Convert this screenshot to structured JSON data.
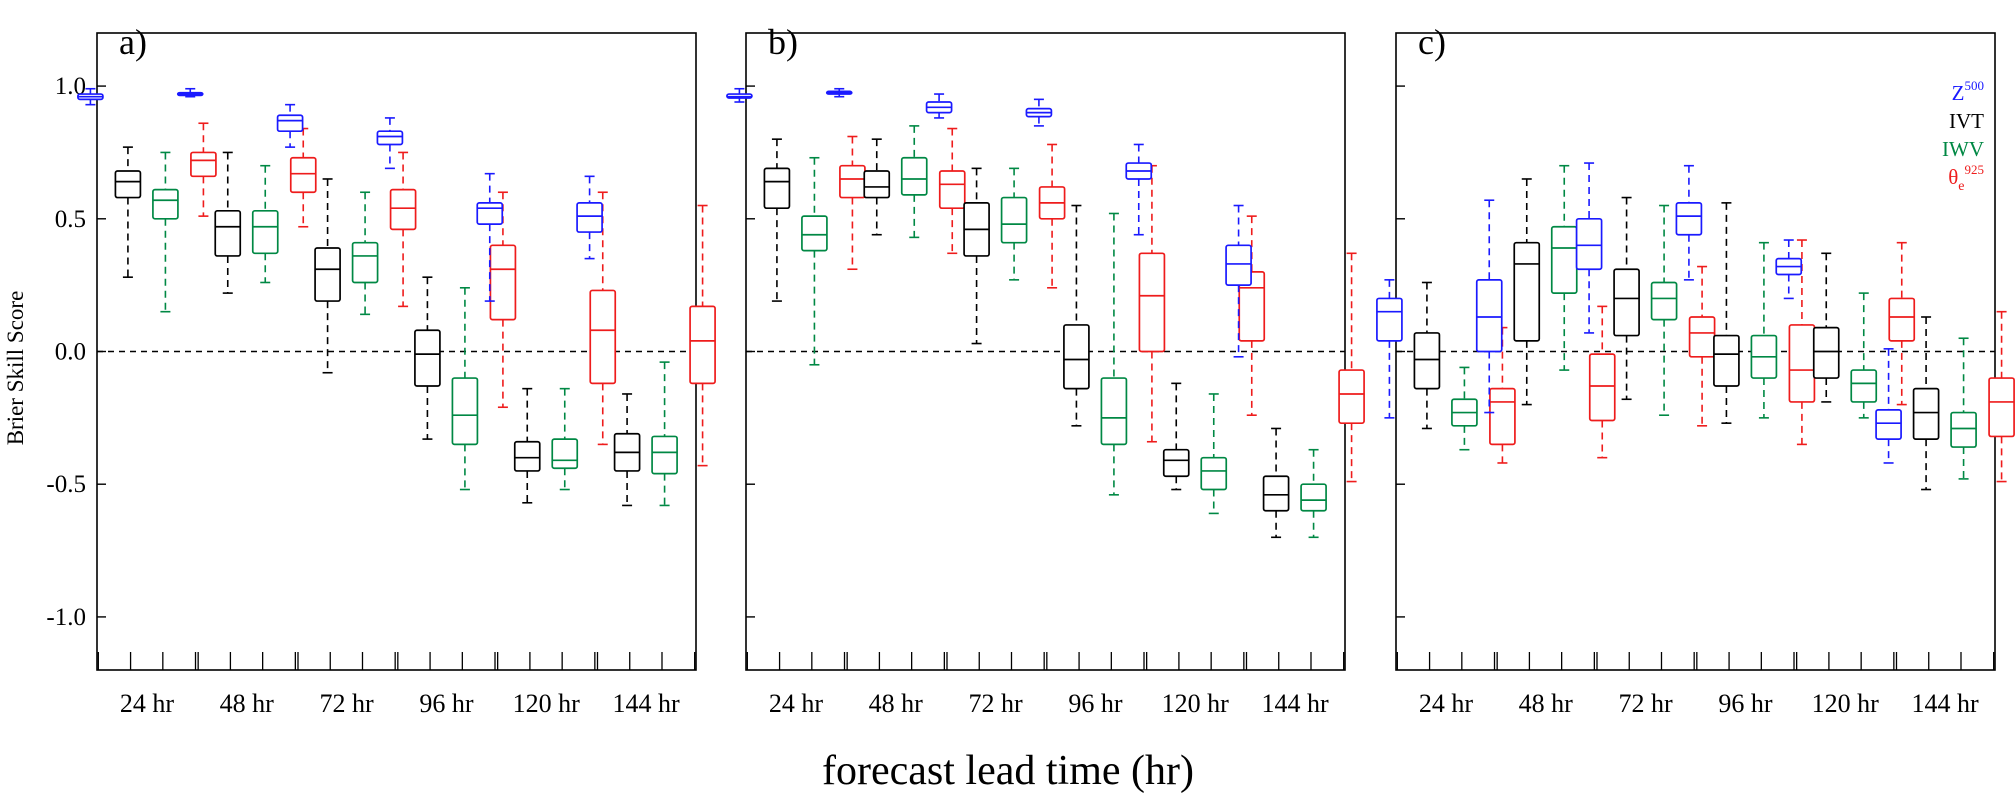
{
  "figure": {
    "xlabel": "forecast lead time (hr)",
    "ylabel": "Brier Skill Score",
    "yticks": [
      {
        "v": 1.0,
        "label": "1.0"
      },
      {
        "v": 0.5,
        "label": "0.5"
      },
      {
        "v": 0.0,
        "label": "0.0"
      },
      {
        "v": -0.5,
        "label": "-0.5"
      },
      {
        "v": -1.0,
        "label": "-1.0"
      }
    ],
    "categories": [
      "24 hr",
      "48 hr",
      "72 hr",
      "96 hr",
      "120 hr",
      "144 hr"
    ],
    "legend": {
      "placement": "top-right of panel c",
      "entries": [
        {
          "base": "Z",
          "sup": "500",
          "sub": "",
          "color": "#1a1aff"
        },
        {
          "base": "IVT",
          "sup": "",
          "sub": "",
          "color": "#000000"
        },
        {
          "base": "IWV",
          "sup": "",
          "sub": "",
          "color": "#008844"
        },
        {
          "base": "θ",
          "sup": "925",
          "sub": "e",
          "color": "#ee1c1c"
        }
      ]
    },
    "colors": {
      "Z500": "#1a1aff",
      "IVT": "#000000",
      "IWV": "#008844",
      "theta_e925": "#ee1c1c"
    }
  },
  "chart_data": [
    {
      "type": "box",
      "panel_label": "a)",
      "ylim": [
        -1.2,
        1.2
      ],
      "reference_line": 0,
      "categories": [
        "24 hr",
        "48 hr",
        "72 hr",
        "96 hr",
        "120 hr",
        "144 hr"
      ],
      "series": [
        {
          "name": "Z500",
          "color": "#1a1aff",
          "boxes": [
            {
              "min": 0.93,
              "q1": 0.95,
              "median": 0.96,
              "q3": 0.97,
              "max": 0.99
            },
            {
              "min": 0.96,
              "q1": 0.965,
              "median": 0.97,
              "q3": 0.975,
              "max": 0.99
            },
            {
              "min": 0.77,
              "q1": 0.83,
              "median": 0.87,
              "q3": 0.89,
              "max": 0.93
            },
            {
              "min": 0.69,
              "q1": 0.78,
              "median": 0.81,
              "q3": 0.83,
              "max": 0.88
            },
            {
              "min": 0.19,
              "q1": 0.48,
              "median": 0.54,
              "q3": 0.56,
              "max": 0.67
            },
            {
              "min": 0.35,
              "q1": 0.45,
              "median": 0.51,
              "q3": 0.56,
              "max": 0.66
            }
          ]
        },
        {
          "name": "IVT",
          "color": "#000000",
          "boxes": [
            {
              "min": 0.28,
              "q1": 0.58,
              "median": 0.64,
              "q3": 0.68,
              "max": 0.77
            },
            {
              "min": 0.22,
              "q1": 0.36,
              "median": 0.47,
              "q3": 0.53,
              "max": 0.75
            },
            {
              "min": -0.08,
              "q1": 0.19,
              "median": 0.31,
              "q3": 0.39,
              "max": 0.65
            },
            {
              "min": -0.33,
              "q1": -0.13,
              "median": -0.01,
              "q3": 0.08,
              "max": 0.28
            },
            {
              "min": -0.57,
              "q1": -0.45,
              "median": -0.4,
              "q3": -0.34,
              "max": -0.14
            },
            {
              "min": -0.58,
              "q1": -0.45,
              "median": -0.38,
              "q3": -0.31,
              "max": -0.16
            }
          ]
        },
        {
          "name": "IWV",
          "color": "#008844",
          "boxes": [
            {
              "min": 0.15,
              "q1": 0.5,
              "median": 0.57,
              "q3": 0.61,
              "max": 0.75
            },
            {
              "min": 0.26,
              "q1": 0.37,
              "median": 0.47,
              "q3": 0.53,
              "max": 0.7
            },
            {
              "min": 0.14,
              "q1": 0.26,
              "median": 0.36,
              "q3": 0.41,
              "max": 0.6
            },
            {
              "min": -0.52,
              "q1": -0.35,
              "median": -0.24,
              "q3": -0.1,
              "max": 0.24
            },
            {
              "min": -0.52,
              "q1": -0.44,
              "median": -0.41,
              "q3": -0.33,
              "max": -0.14
            },
            {
              "min": -0.58,
              "q1": -0.46,
              "median": -0.38,
              "q3": -0.32,
              "max": -0.04
            }
          ]
        },
        {
          "name": "θe925",
          "color": "#ee1c1c",
          "boxes": [
            {
              "min": 0.51,
              "q1": 0.66,
              "median": 0.72,
              "q3": 0.75,
              "max": 0.86
            },
            {
              "min": 0.47,
              "q1": 0.6,
              "median": 0.67,
              "q3": 0.73,
              "max": 0.84
            },
            {
              "min": 0.17,
              "q1": 0.46,
              "median": 0.54,
              "q3": 0.61,
              "max": 0.75
            },
            {
              "min": -0.21,
              "q1": 0.12,
              "median": 0.31,
              "q3": 0.4,
              "max": 0.6
            },
            {
              "min": -0.35,
              "q1": -0.12,
              "median": 0.08,
              "q3": 0.23,
              "max": 0.6
            },
            {
              "min": -0.43,
              "q1": -0.12,
              "median": 0.04,
              "q3": 0.17,
              "max": 0.55
            }
          ]
        }
      ]
    },
    {
      "type": "box",
      "panel_label": "b)",
      "ylim": [
        -1.2,
        1.2
      ],
      "reference_line": 0,
      "categories": [
        "24 hr",
        "48 hr",
        "72 hr",
        "96 hr",
        "120 hr",
        "144 hr"
      ],
      "series": [
        {
          "name": "Z500",
          "color": "#1a1aff",
          "boxes": [
            {
              "min": 0.94,
              "q1": 0.955,
              "median": 0.96,
              "q3": 0.97,
              "max": 0.99
            },
            {
              "min": 0.96,
              "q1": 0.97,
              "median": 0.975,
              "q3": 0.98,
              "max": 0.99
            },
            {
              "min": 0.88,
              "q1": 0.9,
              "median": 0.92,
              "q3": 0.94,
              "max": 0.97
            },
            {
              "min": 0.85,
              "q1": 0.885,
              "median": 0.9,
              "q3": 0.915,
              "max": 0.95
            },
            {
              "min": 0.44,
              "q1": 0.65,
              "median": 0.68,
              "q3": 0.71,
              "max": 0.78
            },
            {
              "min": -0.02,
              "q1": 0.25,
              "median": 0.33,
              "q3": 0.4,
              "max": 0.55
            }
          ]
        },
        {
          "name": "IVT",
          "color": "#000000",
          "boxes": [
            {
              "min": 0.19,
              "q1": 0.54,
              "median": 0.64,
              "q3": 0.69,
              "max": 0.8
            },
            {
              "min": 0.44,
              "q1": 0.58,
              "median": 0.62,
              "q3": 0.68,
              "max": 0.8
            },
            {
              "min": 0.03,
              "q1": 0.36,
              "median": 0.46,
              "q3": 0.56,
              "max": 0.69
            },
            {
              "min": -0.28,
              "q1": -0.14,
              "median": -0.03,
              "q3": 0.1,
              "max": 0.55
            },
            {
              "min": -0.52,
              "q1": -0.47,
              "median": -0.41,
              "q3": -0.37,
              "max": -0.12
            },
            {
              "min": -0.7,
              "q1": -0.6,
              "median": -0.54,
              "q3": -0.47,
              "max": -0.29
            }
          ]
        },
        {
          "name": "IWV",
          "color": "#008844",
          "boxes": [
            {
              "min": -0.05,
              "q1": 0.38,
              "median": 0.44,
              "q3": 0.51,
              "max": 0.73
            },
            {
              "min": 0.43,
              "q1": 0.59,
              "median": 0.65,
              "q3": 0.73,
              "max": 0.85
            },
            {
              "min": 0.27,
              "q1": 0.41,
              "median": 0.48,
              "q3": 0.58,
              "max": 0.69
            },
            {
              "min": -0.54,
              "q1": -0.35,
              "median": -0.25,
              "q3": -0.1,
              "max": 0.52
            },
            {
              "min": -0.61,
              "q1": -0.52,
              "median": -0.45,
              "q3": -0.4,
              "max": -0.16
            },
            {
              "min": -0.7,
              "q1": -0.6,
              "median": -0.56,
              "q3": -0.5,
              "max": -0.37
            }
          ]
        },
        {
          "name": "θe925",
          "color": "#ee1c1c",
          "boxes": [
            {
              "min": 0.31,
              "q1": 0.58,
              "median": 0.65,
              "q3": 0.7,
              "max": 0.81
            },
            {
              "min": 0.37,
              "q1": 0.54,
              "median": 0.63,
              "q3": 0.68,
              "max": 0.84
            },
            {
              "min": 0.24,
              "q1": 0.5,
              "median": 0.56,
              "q3": 0.62,
              "max": 0.78
            },
            {
              "min": -0.34,
              "q1": 0.0,
              "median": 0.21,
              "q3": 0.37,
              "max": 0.7
            },
            {
              "min": -0.24,
              "q1": 0.04,
              "median": 0.24,
              "q3": 0.3,
              "max": 0.51
            },
            {
              "min": -0.49,
              "q1": -0.27,
              "median": -0.16,
              "q3": -0.07,
              "max": 0.37
            }
          ]
        }
      ]
    },
    {
      "type": "box",
      "panel_label": "c)",
      "ylim": [
        -1.2,
        1.2
      ],
      "reference_line": 0,
      "categories": [
        "24 hr",
        "48 hr",
        "72 hr",
        "96 hr",
        "120 hr",
        "144 hr"
      ],
      "series": [
        {
          "name": "Z500",
          "color": "#1a1aff",
          "boxes": [
            {
              "min": -0.25,
              "q1": 0.04,
              "median": 0.15,
              "q3": 0.2,
              "max": 0.27
            },
            {
              "min": -0.23,
              "q1": 0.0,
              "median": 0.13,
              "q3": 0.27,
              "max": 0.57
            },
            {
              "min": 0.07,
              "q1": 0.31,
              "median": 0.4,
              "q3": 0.5,
              "max": 0.71
            },
            {
              "min": 0.27,
              "q1": 0.44,
              "median": 0.51,
              "q3": 0.56,
              "max": 0.7
            },
            {
              "min": 0.2,
              "q1": 0.29,
              "median": 0.32,
              "q3": 0.35,
              "max": 0.42
            },
            {
              "min": -0.42,
              "q1": -0.33,
              "median": -0.27,
              "q3": -0.22,
              "max": 0.01
            }
          ]
        },
        {
          "name": "IVT",
          "color": "#000000",
          "boxes": [
            {
              "min": -0.29,
              "q1": -0.14,
              "median": -0.03,
              "q3": 0.07,
              "max": 0.26
            },
            {
              "min": -0.2,
              "q1": 0.04,
              "median": 0.33,
              "q3": 0.41,
              "max": 0.65
            },
            {
              "min": -0.18,
              "q1": 0.06,
              "median": 0.2,
              "q3": 0.31,
              "max": 0.58
            },
            {
              "min": -0.27,
              "q1": -0.13,
              "median": -0.01,
              "q3": 0.06,
              "max": 0.56
            },
            {
              "min": -0.19,
              "q1": -0.1,
              "median": 0.0,
              "q3": 0.09,
              "max": 0.37
            },
            {
              "min": -0.52,
              "q1": -0.33,
              "median": -0.23,
              "q3": -0.14,
              "max": 0.13
            }
          ]
        },
        {
          "name": "IWV",
          "color": "#008844",
          "boxes": [
            {
              "min": -0.37,
              "q1": -0.28,
              "median": -0.23,
              "q3": -0.18,
              "max": -0.06
            },
            {
              "min": -0.07,
              "q1": 0.22,
              "median": 0.39,
              "q3": 0.47,
              "max": 0.7
            },
            {
              "min": -0.24,
              "q1": 0.12,
              "median": 0.2,
              "q3": 0.26,
              "max": 0.55
            },
            {
              "min": -0.25,
              "q1": -0.1,
              "median": -0.02,
              "q3": 0.06,
              "max": 0.41
            },
            {
              "min": -0.25,
              "q1": -0.19,
              "median": -0.12,
              "q3": -0.07,
              "max": 0.22
            },
            {
              "min": -0.48,
              "q1": -0.36,
              "median": -0.29,
              "q3": -0.23,
              "max": 0.05
            }
          ]
        },
        {
          "name": "θe925",
          "color": "#ee1c1c",
          "boxes": [
            {
              "min": -0.42,
              "q1": -0.35,
              "median": -0.19,
              "q3": -0.14,
              "max": 0.09
            },
            {
              "min": -0.4,
              "q1": -0.26,
              "median": -0.13,
              "q3": -0.01,
              "max": 0.17
            },
            {
              "min": -0.28,
              "q1": -0.02,
              "median": 0.07,
              "q3": 0.13,
              "max": 0.32
            },
            {
              "min": -0.35,
              "q1": -0.19,
              "median": -0.07,
              "q3": 0.1,
              "max": 0.42
            },
            {
              "min": -0.2,
              "q1": 0.04,
              "median": 0.13,
              "q3": 0.2,
              "max": 0.41
            },
            {
              "min": -0.49,
              "q1": -0.32,
              "median": -0.19,
              "q3": -0.1,
              "max": 0.15
            }
          ]
        }
      ]
    }
  ]
}
